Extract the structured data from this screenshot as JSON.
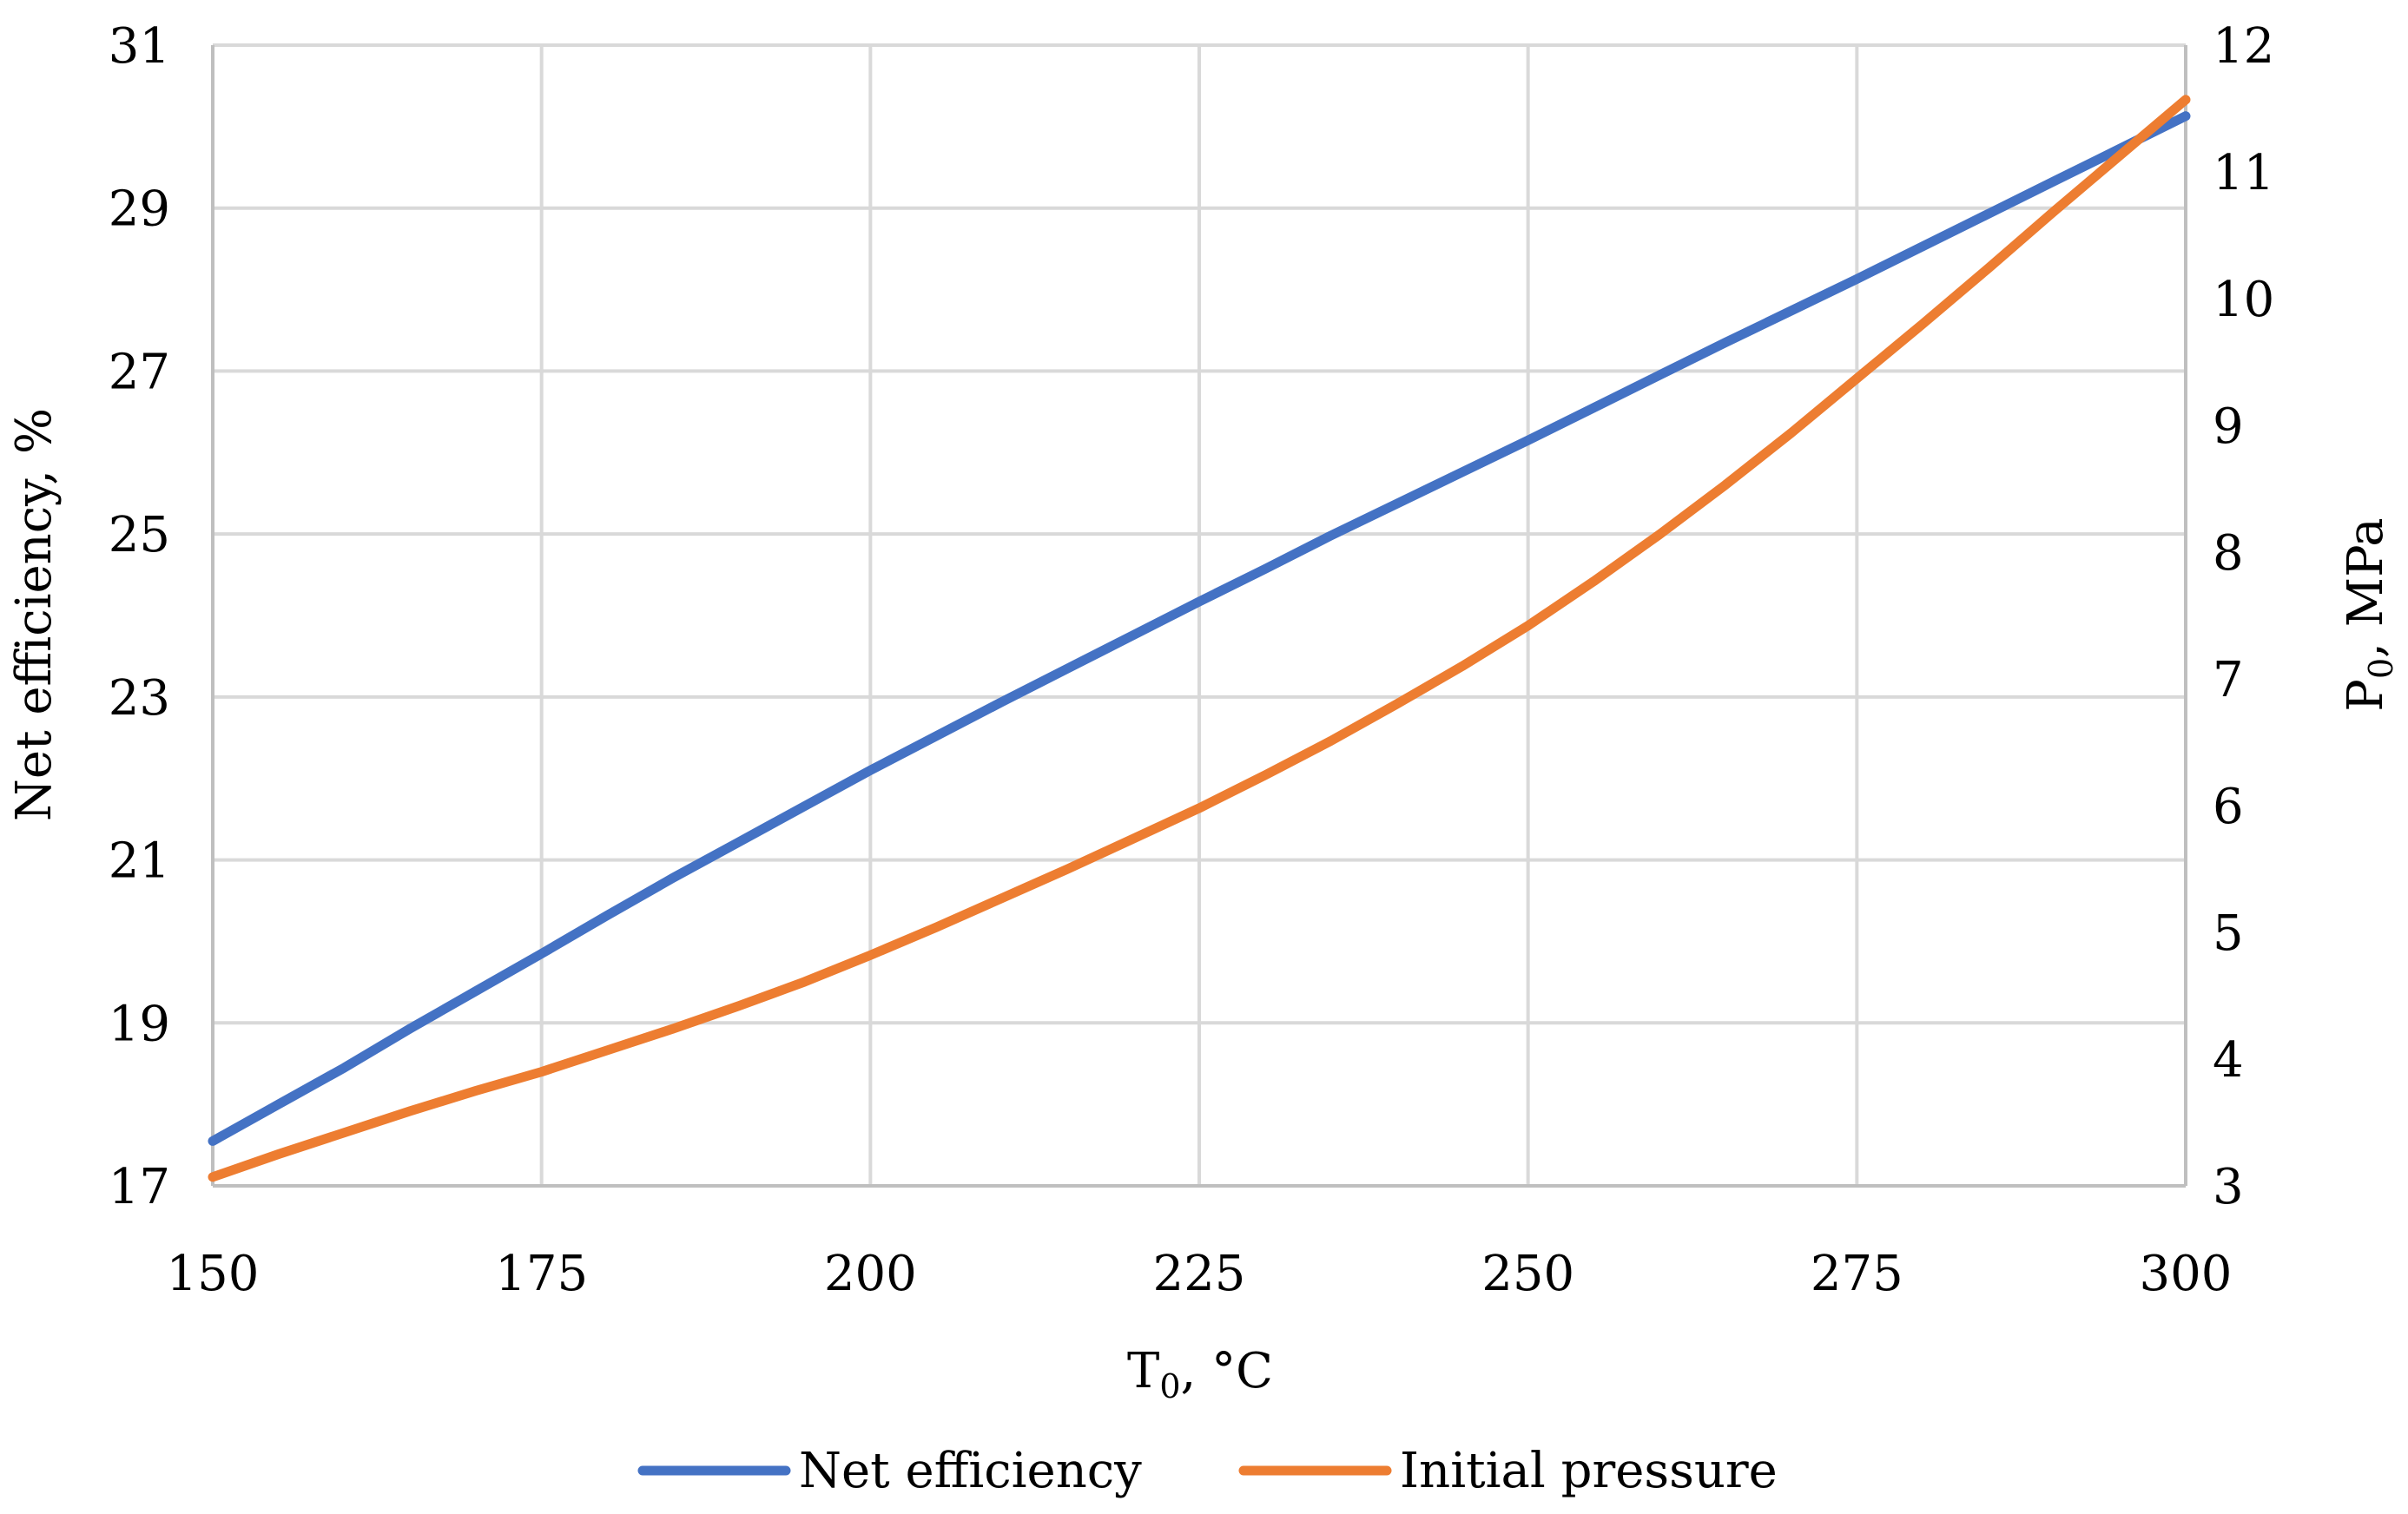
{
  "chart_data": {
    "type": "line",
    "x": [
      150,
      155,
      160,
      165,
      170,
      175,
      180,
      185,
      190,
      195,
      200,
      205,
      210,
      215,
      220,
      225,
      230,
      235,
      240,
      245,
      250,
      255,
      260,
      265,
      270,
      275,
      280,
      285,
      290,
      295,
      300
    ],
    "series": [
      {
        "name": "Net efficiency",
        "axis": "left",
        "color": "#4472C4",
        "values": [
          17.55,
          18.0,
          18.45,
          18.93,
          19.39,
          19.85,
          20.32,
          20.78,
          21.22,
          21.66,
          22.1,
          22.52,
          22.94,
          23.35,
          23.76,
          24.17,
          24.57,
          24.98,
          25.37,
          25.76,
          26.15,
          26.55,
          26.95,
          27.35,
          27.74,
          28.13,
          28.53,
          28.93,
          29.33,
          29.73,
          30.13
        ]
      },
      {
        "name": "Initial pressure",
        "axis": "right",
        "color": "#ED7D31",
        "values": [
          3.07,
          3.25,
          3.42,
          3.59,
          3.75,
          3.9,
          4.07,
          4.24,
          4.42,
          4.61,
          4.82,
          5.04,
          5.27,
          5.5,
          5.74,
          5.98,
          6.24,
          6.51,
          6.8,
          7.1,
          7.42,
          7.77,
          8.14,
          8.53,
          8.94,
          9.37,
          9.8,
          10.24,
          10.69,
          11.13,
          11.57
        ]
      }
    ],
    "title": "",
    "xlabel": {
      "main": "T",
      "sub": "0",
      "rest": ", °C"
    },
    "ylabel": "Net efficiency, %",
    "y2label": {
      "main": "P",
      "sub": "0",
      "rest": ", MPa"
    },
    "xlim": [
      150,
      300
    ],
    "ylim": [
      17,
      31
    ],
    "y2lim": [
      3,
      12
    ],
    "xticks": [
      150,
      175,
      200,
      225,
      250,
      275,
      300
    ],
    "yticks": [
      17,
      19,
      21,
      23,
      25,
      27,
      29,
      31
    ],
    "y2ticks": [
      3,
      4,
      5,
      6,
      7,
      8,
      9,
      10,
      11,
      12
    ],
    "grid": true,
    "legend": "bottom-center"
  }
}
